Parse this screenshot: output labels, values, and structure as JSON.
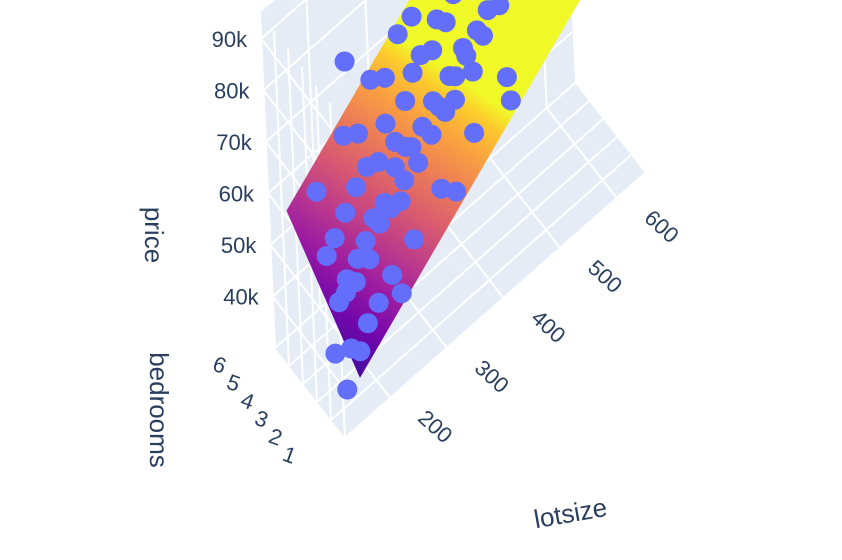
{
  "chart_data": {
    "type": "scatter3d",
    "title": "",
    "axes": {
      "x": {
        "title": "lotsize",
        "range": [
          120,
          650
        ],
        "ticks": [
          200,
          300,
          400,
          500,
          600
        ],
        "tick_labels": [
          "200",
          "300",
          "400",
          "500",
          "600"
        ]
      },
      "y": {
        "title": "bedrooms",
        "range": [
          1,
          6
        ],
        "ticks": [
          1,
          2,
          3,
          4,
          5,
          6
        ],
        "tick_labels": [
          "1",
          "2",
          "3",
          "4",
          "5",
          "6"
        ]
      },
      "z": {
        "title": "price",
        "range": [
          30000,
          95000
        ],
        "ticks": [
          40000,
          50000,
          60000,
          70000,
          80000,
          90000
        ],
        "tick_labels": [
          "40k",
          "50k",
          "60k",
          "70k",
          "80k",
          "90k"
        ]
      }
    },
    "grid": true,
    "scene_background": "#e5ecf6",
    "marker_color": "#636efa",
    "surface_colorscale": [
      "#0d0887",
      "#46039f",
      "#7201a8",
      "#9c179e",
      "#bd3786",
      "#d8576b",
      "#ed7953",
      "#fb9f3a",
      "#fdca26",
      "#f0f921"
    ],
    "regression_surface": {
      "intercept": 23000,
      "coef_lotsize": 85,
      "coef_bedrooms": 3000
    },
    "series": [
      {
        "type": "scatter3d",
        "points": [
          [
            150,
            2,
            33000
          ],
          [
            155,
            3,
            36000
          ],
          [
            160,
            2,
            40000
          ],
          [
            165,
            3,
            45000
          ],
          [
            170,
            4,
            50000
          ],
          [
            175,
            2,
            38000
          ],
          [
            180,
            3,
            48000
          ],
          [
            185,
            4,
            52000
          ],
          [
            190,
            2,
            42000
          ],
          [
            195,
            3,
            46000
          ],
          [
            200,
            3,
            50000
          ],
          [
            205,
            4,
            55000
          ],
          [
            210,
            2,
            44000
          ],
          [
            215,
            3,
            52000
          ],
          [
            220,
            3,
            48000
          ],
          [
            225,
            4,
            58000
          ],
          [
            230,
            3,
            55000
          ],
          [
            235,
            2,
            47000
          ],
          [
            240,
            3,
            53000
          ],
          [
            245,
            4,
            60000
          ],
          [
            250,
            3,
            56000
          ],
          [
            255,
            5,
            62000
          ],
          [
            260,
            3,
            54000
          ],
          [
            265,
            4,
            59000
          ],
          [
            270,
            3,
            61000
          ],
          [
            275,
            2,
            50000
          ],
          [
            280,
            4,
            65000
          ],
          [
            285,
            3,
            57000
          ],
          [
            290,
            3,
            63000
          ],
          [
            295,
            4,
            60000
          ],
          [
            300,
            3,
            62000
          ],
          [
            305,
            5,
            68000
          ],
          [
            310,
            3,
            58000
          ],
          [
            315,
            4,
            66000
          ],
          [
            320,
            3,
            64000
          ],
          [
            325,
            2,
            55000
          ],
          [
            330,
            4,
            70000
          ],
          [
            335,
            3,
            61000
          ],
          [
            340,
            3,
            67000
          ],
          [
            345,
            4,
            72000
          ],
          [
            350,
            3,
            65000
          ],
          [
            355,
            5,
            75000
          ],
          [
            360,
            3,
            63000
          ],
          [
            365,
            4,
            71000
          ],
          [
            370,
            3,
            69000
          ],
          [
            375,
            4,
            76000
          ],
          [
            380,
            3,
            68000
          ],
          [
            385,
            2,
            60000
          ],
          [
            390,
            4,
            74000
          ],
          [
            395,
            3,
            72000
          ],
          [
            400,
            3,
            70000
          ],
          [
            405,
            4,
            78000
          ],
          [
            410,
            3,
            66000
          ],
          [
            415,
            5,
            80000
          ],
          [
            420,
            3,
            73000
          ],
          [
            425,
            4,
            77000
          ],
          [
            430,
            3,
            71000
          ],
          [
            435,
            4,
            82000
          ],
          [
            440,
            3,
            75000
          ],
          [
            445,
            2,
            65000
          ],
          [
            450,
            4,
            80000
          ],
          [
            455,
            3,
            78000
          ],
          [
            460,
            3,
            74000
          ],
          [
            465,
            4,
            84000
          ],
          [
            470,
            3,
            79000
          ],
          [
            475,
            5,
            86000
          ],
          [
            480,
            3,
            76000
          ],
          [
            485,
            4,
            83000
          ],
          [
            490,
            3,
            81000
          ],
          [
            495,
            4,
            85000
          ],
          [
            500,
            3,
            78000
          ],
          [
            510,
            4,
            87000
          ],
          [
            520,
            3,
            82000
          ],
          [
            530,
            4,
            88000
          ],
          [
            540,
            3,
            80000
          ],
          [
            550,
            4,
            86000
          ],
          [
            560,
            3,
            84000
          ],
          [
            570,
            4,
            90000
          ],
          [
            580,
            3,
            83000
          ],
          [
            590,
            4,
            89000
          ],
          [
            600,
            3,
            86000
          ],
          [
            610,
            4,
            91000
          ],
          [
            620,
            3,
            88000
          ],
          [
            200,
            4,
            40000
          ],
          [
            250,
            2,
            42000
          ],
          [
            300,
            4,
            48000
          ],
          [
            350,
            2,
            52000
          ],
          [
            400,
            4,
            58000
          ],
          [
            450,
            2,
            60000
          ],
          [
            500,
            4,
            70000
          ],
          [
            180,
            5,
            58000
          ],
          [
            230,
            5,
            64000
          ],
          [
            280,
            5,
            70000
          ],
          [
            330,
            5,
            74000
          ],
          [
            380,
            5,
            80000
          ],
          [
            430,
            5,
            84000
          ],
          [
            480,
            5,
            88000
          ],
          [
            260,
            6,
            72000
          ],
          [
            360,
            6,
            82000
          ],
          [
            460,
            6,
            90000
          ]
        ]
      }
    ]
  }
}
